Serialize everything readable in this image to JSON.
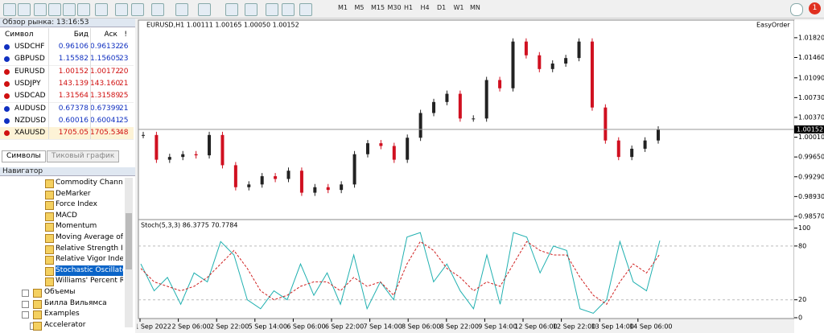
{
  "toolbar": {
    "timeframes": [
      "M1",
      "M5",
      "M15",
      "M30",
      "H1",
      "H4",
      "D1",
      "W1",
      "MN"
    ],
    "badge": "1"
  },
  "market_watch": {
    "title": "Обзор рынка: 13:16:53",
    "columns": [
      "Символ",
      "Бид",
      "Аск",
      "!"
    ],
    "rows": [
      {
        "cells": [
          "USDCHF",
          "0.96106",
          "0.96132",
          "26"
        ],
        "color": "#1030c0"
      },
      {
        "cells": [
          "GBPUSD",
          "1.15582",
          "1.15605",
          "23"
        ],
        "color": "#1030c0"
      },
      {
        "cells": [
          "EURUSD",
          "1.00152",
          "1.00172",
          "20"
        ],
        "color": "#d01010"
      },
      {
        "cells": [
          "USDJPY",
          "143.139",
          "143.160",
          "21"
        ],
        "color": "#d01010"
      },
      {
        "cells": [
          "USDCAD",
          "1.31564",
          "1.31589",
          "25"
        ],
        "color": "#d01010"
      },
      {
        "cells": [
          "AUDUSD",
          "0.67378",
          "0.67399",
          "21"
        ],
        "color": "#1030c0"
      },
      {
        "cells": [
          "NZDUSD",
          "0.60016",
          "0.60041",
          "25"
        ],
        "color": "#1030c0"
      },
      {
        "cells": [
          "XAUUSD",
          "1705.05",
          "1705.53",
          "48"
        ],
        "color": "#d01010"
      }
    ],
    "tabs": [
      "Символы",
      "Тиковый график"
    ]
  },
  "navigator": {
    "title": "Навигатор",
    "items": [
      "Commodity Channel I",
      "DeMarker",
      "Force Index",
      "MACD",
      "Momentum",
      "Moving Average of C",
      "Relative Strength Inde",
      "Relative Vigor Index",
      "Stochastic Oscillator",
      "Williams' Percent Rar"
    ],
    "selected": 8,
    "folders": [
      "Объемы",
      "Билла Вильямса",
      "Examples",
      "Accelerator"
    ]
  },
  "chart": {
    "header": "EURUSD,H1  1.00111 1.00165 1.00050 1.00152",
    "plugin": "EasyOrder",
    "price": {
      "type": "candlestick",
      "closes": [
        1.0005,
        0.996,
        0.9965,
        0.997,
        0.9968,
        1.0005,
        0.995,
        0.991,
        0.9915,
        0.993,
        0.9925,
        0.994,
        0.99,
        0.991,
        0.9905,
        0.9915,
        0.997,
        0.999,
        0.9985,
        0.996,
        1.0,
        1.0045,
        1.0065,
        1.008,
        1.0035,
        1.0035,
        1.0105,
        1.009,
        1.0175,
        1.015,
        1.0125,
        1.0135,
        1.0145,
        1.0175,
        1.0055,
        0.9995,
        0.9965,
        0.998,
        0.9995,
        1.0015
      ],
      "current": 1.00152,
      "ylim": [
        0.9854,
        1.0195
      ],
      "yticks": [
        {
          "value": 1.0182,
          "label": "1.01820"
        },
        {
          "value": 1.0146,
          "label": "1.01460"
        },
        {
          "value": 1.0109,
          "label": "1.01090"
        },
        {
          "value": 1.0073,
          "label": "1.00730"
        },
        {
          "value": 1.0037,
          "label": "1.00370"
        },
        {
          "value": 1.0001,
          "label": "1.00010"
        },
        {
          "value": 0.9965,
          "label": "0.99650"
        },
        {
          "value": 0.9929,
          "label": "0.99290"
        },
        {
          "value": 0.9893,
          "label": "0.98930"
        },
        {
          "value": 0.9857,
          "label": "0.98570"
        }
      ]
    },
    "stochastic": {
      "title": "Stoch(5,3,3) 86.3775 70.7784",
      "ylim": [
        0,
        105
      ],
      "yticks": [
        100,
        80,
        20,
        0
      ],
      "levels": [
        80,
        20
      ],
      "series": [
        {
          "name": "Main",
          "color": "#20b0b0",
          "values": [
            60,
            30,
            45,
            15,
            50,
            40,
            85,
            70,
            20,
            10,
            30,
            20,
            60,
            25,
            50,
            15,
            70,
            10,
            40,
            20,
            90,
            95,
            40,
            60,
            30,
            10,
            70,
            15,
            95,
            90,
            50,
            80,
            75,
            10,
            5,
            20,
            85,
            40,
            30,
            86
          ]
        },
        {
          "name": "Signal",
          "color": "#d02020",
          "values": [
            55,
            40,
            35,
            30,
            35,
            45,
            60,
            75,
            55,
            30,
            20,
            25,
            35,
            40,
            40,
            30,
            45,
            35,
            40,
            25,
            60,
            85,
            75,
            55,
            45,
            30,
            40,
            35,
            60,
            85,
            75,
            70,
            70,
            45,
            25,
            15,
            40,
            60,
            50,
            71
          ]
        }
      ]
    },
    "time_labels": [
      "1 Sep 2022",
      "2 Sep 06:00",
      "2 Sep 22:00",
      "5 Sep 14:00",
      "6 Sep 06:00",
      "6 Sep 22:00",
      "7 Sep 14:00",
      "8 Sep 06:00",
      "8 Sep 22:00",
      "9 Sep 14:00",
      "12 Sep 06:00",
      "12 Sep 22:00",
      "13 Sep 14:00",
      "14 Sep 06:00"
    ]
  }
}
